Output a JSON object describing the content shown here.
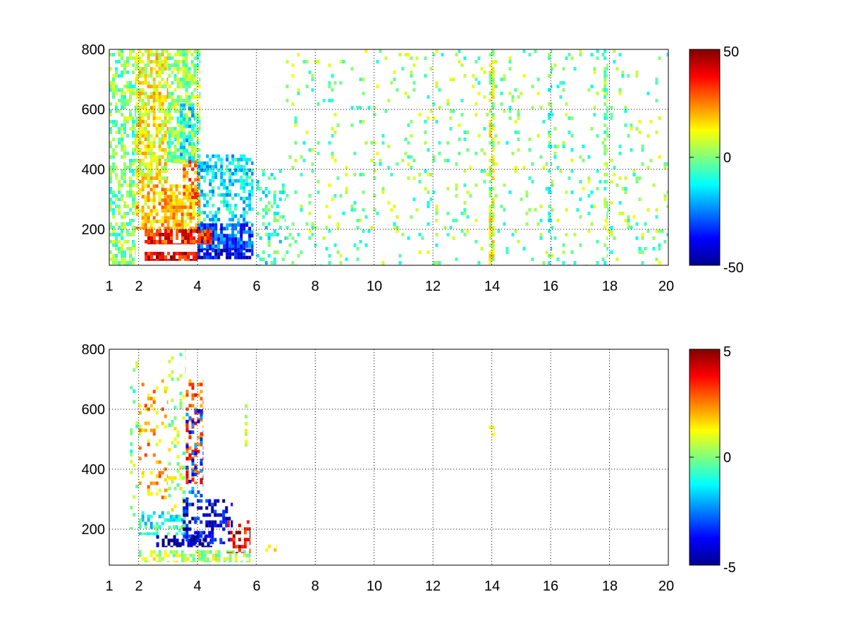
{
  "chart_data": [
    {
      "type": "heatmap",
      "title": "",
      "xlabel": "",
      "ylabel": "",
      "xlim": [
        1,
        20
      ],
      "ylim": [
        80,
        800
      ],
      "x_ticks": [
        "1",
        "2",
        "4",
        "6",
        "8",
        "10",
        "12",
        "14",
        "16",
        "18",
        "20"
      ],
      "x_tick_values": [
        1,
        2,
        4,
        6,
        8,
        10,
        12,
        14,
        16,
        18,
        20
      ],
      "y_ticks": [
        "200",
        "400",
        "600",
        "800"
      ],
      "y_tick_values": [
        200,
        400,
        600,
        800
      ],
      "grid": true,
      "colormap": "jet",
      "colorbar": {
        "range": [
          -50,
          50
        ],
        "ticks": [
          "50",
          "0",
          "-50"
        ],
        "tick_values": [
          50,
          0,
          -50
        ]
      },
      "regions": [
        {
          "x": [
            1.0,
            1.9
          ],
          "y": [
            80,
            800
          ],
          "value": 0,
          "density": 0.5
        },
        {
          "x": [
            1.9,
            3.0
          ],
          "y": [
            350,
            800
          ],
          "value": 12,
          "density": 0.7
        },
        {
          "x": [
            3.0,
            4.1
          ],
          "y": [
            420,
            800
          ],
          "value": 2,
          "density": 0.65
        },
        {
          "x": [
            3.4,
            3.9
          ],
          "y": [
            420,
            620
          ],
          "value": -15,
          "density": 0.6
        },
        {
          "x": [
            1.9,
            4.1
          ],
          "y": [
            200,
            350
          ],
          "value": 18,
          "density": 0.7
        },
        {
          "x": [
            3.5,
            4.1
          ],
          "y": [
            300,
            430
          ],
          "value": 25,
          "density": 0.6
        },
        {
          "x": [
            4.0,
            5.9
          ],
          "y": [
            220,
            450
          ],
          "value": -15,
          "density": 0.5
        },
        {
          "x": [
            4.0,
            5.9
          ],
          "y": [
            130,
            220
          ],
          "value": -30,
          "density": 0.8
        },
        {
          "x": [
            2.2,
            4.5
          ],
          "y": [
            150,
            200
          ],
          "value": 35,
          "density": 0.8
        },
        {
          "x": [
            2.2,
            4.0
          ],
          "y": [
            95,
            125
          ],
          "value": 40,
          "density": 0.8
        },
        {
          "x": [
            4.0,
            5.9
          ],
          "y": [
            100,
            135
          ],
          "value": -40,
          "density": 0.8
        },
        {
          "x": [
            6.0,
            7.0
          ],
          "y": [
            80,
            400
          ],
          "value": -8,
          "density": 0.25
        },
        {
          "x": [
            7.0,
            20.0
          ],
          "y": [
            80,
            800
          ],
          "value": 0,
          "density": 0.07
        },
        {
          "x": [
            13.9,
            14.1
          ],
          "y": [
            80,
            800
          ],
          "value": 8,
          "density": 0.6
        },
        {
          "x": [
            17.8,
            17.95
          ],
          "y": [
            80,
            800
          ],
          "value": 0,
          "density": 0.45
        },
        {
          "x": [
            15.9,
            16.05
          ],
          "y": [
            80,
            800
          ],
          "value": -5,
          "density": 0.3
        }
      ]
    },
    {
      "type": "heatmap",
      "title": "",
      "xlabel": "",
      "ylabel": "",
      "xlim": [
        1,
        20
      ],
      "ylim": [
        80,
        800
      ],
      "x_ticks": [
        "1",
        "2",
        "4",
        "6",
        "8",
        "10",
        "12",
        "14",
        "16",
        "18",
        "20"
      ],
      "x_tick_values": [
        1,
        2,
        4,
        6,
        8,
        10,
        12,
        14,
        16,
        18,
        20
      ],
      "y_ticks": [
        "200",
        "400",
        "600",
        "800"
      ],
      "y_tick_values": [
        200,
        400,
        600,
        800
      ],
      "grid": true,
      "colormap": "jet",
      "colorbar": {
        "range": [
          -5,
          5
        ],
        "ticks": [
          "5",
          "0",
          "-5"
        ],
        "tick_values": [
          5,
          0,
          -5
        ]
      },
      "regions": [
        {
          "x": [
            1.7,
            2.0
          ],
          "y": [
            200,
            760
          ],
          "value": 0,
          "density": 0.18
        },
        {
          "x": [
            2.0,
            3.0
          ],
          "y": [
            300,
            700
          ],
          "value": 2,
          "density": 0.2
        },
        {
          "x": [
            3.0,
            3.6
          ],
          "y": [
            200,
            800
          ],
          "value": 0.5,
          "density": 0.22
        },
        {
          "x": [
            3.6,
            4.2
          ],
          "y": [
            350,
            700
          ],
          "value": 3,
          "density": 0.3
        },
        {
          "x": [
            3.6,
            4.2
          ],
          "y": [
            300,
            600
          ],
          "value": -3,
          "density": 0.2
        },
        {
          "x": [
            2.0,
            3.6
          ],
          "y": [
            180,
            260
          ],
          "value": -1,
          "density": 0.4
        },
        {
          "x": [
            2.5,
            4.5
          ],
          "y": [
            140,
            180
          ],
          "value": -5,
          "density": 0.55
        },
        {
          "x": [
            3.5,
            5.2
          ],
          "y": [
            150,
            300
          ],
          "value": -4,
          "density": 0.4
        },
        {
          "x": [
            2.0,
            5.8
          ],
          "y": [
            90,
            130
          ],
          "value": 0.5,
          "density": 0.5
        },
        {
          "x": [
            5.0,
            5.8
          ],
          "y": [
            120,
            230
          ],
          "value": 4,
          "density": 0.4
        },
        {
          "x": [
            5.6,
            5.7
          ],
          "y": [
            450,
            640
          ],
          "value": 1,
          "density": 0.35
        },
        {
          "x": [
            6.3,
            6.7
          ],
          "y": [
            100,
            160
          ],
          "value": 2,
          "density": 0.2
        },
        {
          "x": [
            13.9,
            14.1
          ],
          "y": [
            510,
            545
          ],
          "value": 1.5,
          "density": 0.7
        }
      ]
    }
  ]
}
